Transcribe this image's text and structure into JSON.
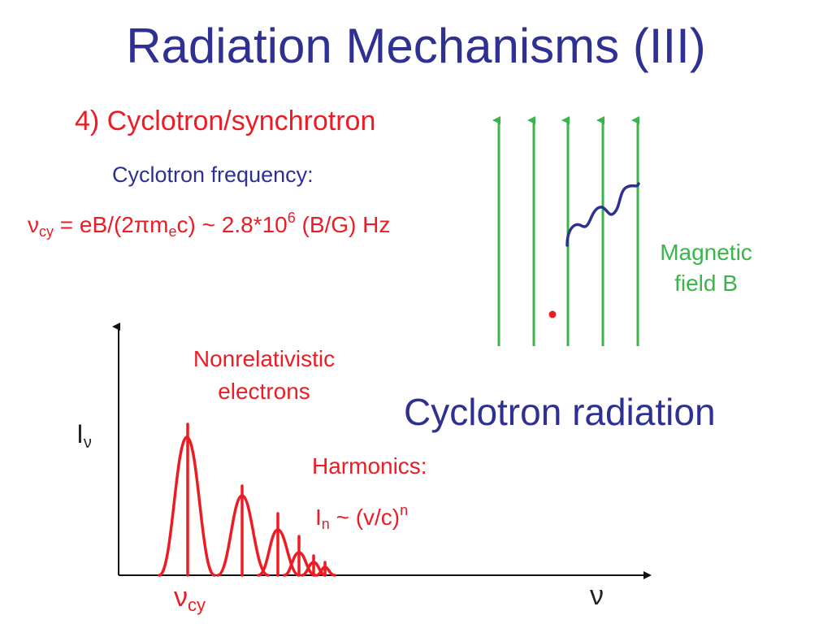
{
  "title": "Radiation Mechanisms (III)",
  "heading": "4) Cyclotron/synchrotron",
  "frequency_label": "Cyclotron frequency:",
  "formula": {
    "nu": "ν",
    "nu_sub": "cy",
    "equals": " = eB/(2",
    "pi": "π",
    "m": "m",
    "m_sub": "e",
    "rest": "c) ~ 2.8*10",
    "exp": "6",
    "unit": " (B/G) Hz"
  },
  "field_label": "Magnetic field B",
  "nonrelativistic_label": "Nonrelativistic electrons",
  "cyclotron_radiation": "Cyclotron radiation",
  "harmonics_label": "Harmonics:",
  "harmonics_law": {
    "i": "I",
    "i_sub": "n",
    "rest": " ~ (v/c)",
    "exp": "n"
  },
  "y_axis_label": {
    "main": "I",
    "sub": "ν"
  },
  "x_origin_label": {
    "main": "ν",
    "sub": "cy"
  },
  "x_axis_end_label": "ν",
  "colors": {
    "title_blue": "#2e3192",
    "red": "#ed1c24",
    "green": "#39b54a"
  }
}
